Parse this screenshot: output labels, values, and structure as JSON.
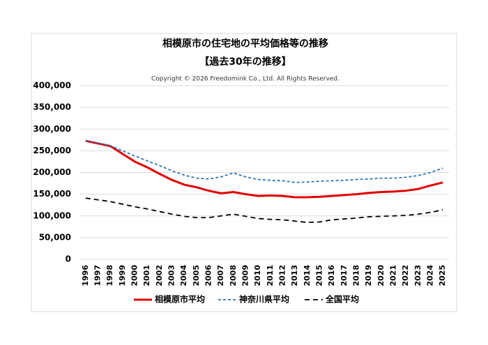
{
  "chart_data": {
    "type": "line",
    "title": "相模原市の住宅地の平均価格等の推移",
    "subtitle": "【過去30年の推移】",
    "copyright": "Copyright © 2026 Freedomink Co., Ltd. All Rights Reserved.",
    "categories": [
      "1996",
      "1997",
      "1998",
      "1999",
      "2000",
      "2001",
      "2002",
      "2003",
      "2004",
      "2005",
      "2006",
      "2007",
      "2008",
      "2009",
      "2010",
      "2011",
      "2012",
      "2013",
      "2014",
      "2015",
      "2016",
      "2017",
      "2018",
      "2019",
      "2020",
      "2021",
      "2022",
      "2023",
      "2024",
      "2025"
    ],
    "series": [
      {
        "name": "相模原市平均",
        "color": "#e00000",
        "line_style": "solid",
        "values": [
          273000,
          267000,
          261000,
          243000,
          225000,
          212000,
          197000,
          183000,
          172000,
          166000,
          158000,
          152000,
          155000,
          150000,
          146000,
          147000,
          146000,
          143000,
          143000,
          144000,
          146000,
          148000,
          150000,
          153000,
          155000,
          156000,
          158000,
          162000,
          170000,
          177000
        ]
      },
      {
        "name": "神奈川県平均",
        "color": "#2e75b6",
        "line_style": "dashed",
        "values": [
          274000,
          268000,
          262000,
          250000,
          238000,
          227000,
          216000,
          204000,
          194000,
          187000,
          185000,
          190000,
          199000,
          190000,
          184000,
          182000,
          181000,
          177000,
          178000,
          180000,
          181000,
          182000,
          184000,
          185000,
          187000,
          187000,
          189000,
          193000,
          200000,
          210000
        ]
      },
      {
        "name": "全国平均",
        "color": "#000000",
        "line_style": "dashed",
        "values": [
          141000,
          137000,
          133000,
          127000,
          121000,
          116000,
          110000,
          104000,
          99000,
          96000,
          96000,
          100000,
          104000,
          99000,
          94000,
          92000,
          91000,
          88000,
          85000,
          86000,
          91000,
          93000,
          95000,
          98000,
          99000,
          100000,
          101000,
          104000,
          108000,
          114000
        ]
      }
    ],
    "ylim": [
      0,
      400000
    ],
    "yticks": [
      0,
      {
        "value": 50000,
        "label": "50,000"
      },
      {
        "value": 100000,
        "label": "100,000"
      },
      {
        "value": 150000,
        "label": "150,000"
      },
      {
        "value": 200000,
        "label": "200,000"
      },
      {
        "value": 250000,
        "label": "250,000"
      },
      {
        "value": 300000,
        "label": "300,000"
      },
      {
        "value": 350000,
        "label": "350,000"
      },
      {
        "value": 400000,
        "label": "400,000"
      }
    ],
    "grid": true,
    "legend": "bottom"
  }
}
